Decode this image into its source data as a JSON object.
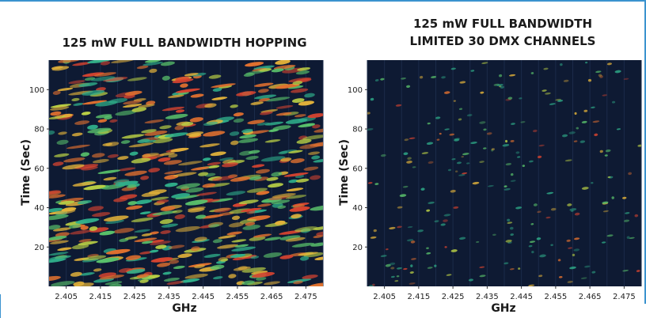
{
  "chart_data": [
    {
      "type": "heatmap",
      "title": "125 mW FULL BANDWIDTH HOPPING",
      "xlabel": "GHz",
      "ylabel": "Time (Sec)",
      "xticks": [
        "2.405",
        "2.415",
        "2.425",
        "2.435",
        "2.445",
        "2.455",
        "2.465",
        "2.475"
      ],
      "yticks": [
        20,
        40,
        60,
        80,
        100
      ],
      "xlim": [
        2.4,
        2.48
      ],
      "ylim": [
        0,
        115
      ],
      "background": "#0e1a33",
      "density": "high",
      "seed": 7,
      "count": 520
    },
    {
      "type": "heatmap",
      "title": "125 mW FULL BANDWIDTH LIMITED 30 DMX CHANNELS",
      "title_lines": [
        "125 mW FULL BANDWIDTH",
        "LIMITED 30 DMX CHANNELS"
      ],
      "xlabel": "GHz",
      "ylabel": "Time (Sec)",
      "xticks": [
        "2.405",
        "2.415",
        "2.425",
        "2.435",
        "2.445",
        "2.455",
        "2.465",
        "2.475"
      ],
      "yticks": [
        20,
        40,
        60,
        80,
        100
      ],
      "xlim": [
        2.4,
        2.48
      ],
      "ylim": [
        0,
        115
      ],
      "background": "#0e1a33",
      "density": "sparse",
      "seed": 31,
      "count": 230
    }
  ],
  "colors": {
    "frame": "#3b93cf",
    "plot_bg": "#0e1a33",
    "heat": [
      "#2fae8a",
      "#59c16b",
      "#b9cf45",
      "#e2b23a",
      "#e0702f",
      "#d84430"
    ]
  }
}
